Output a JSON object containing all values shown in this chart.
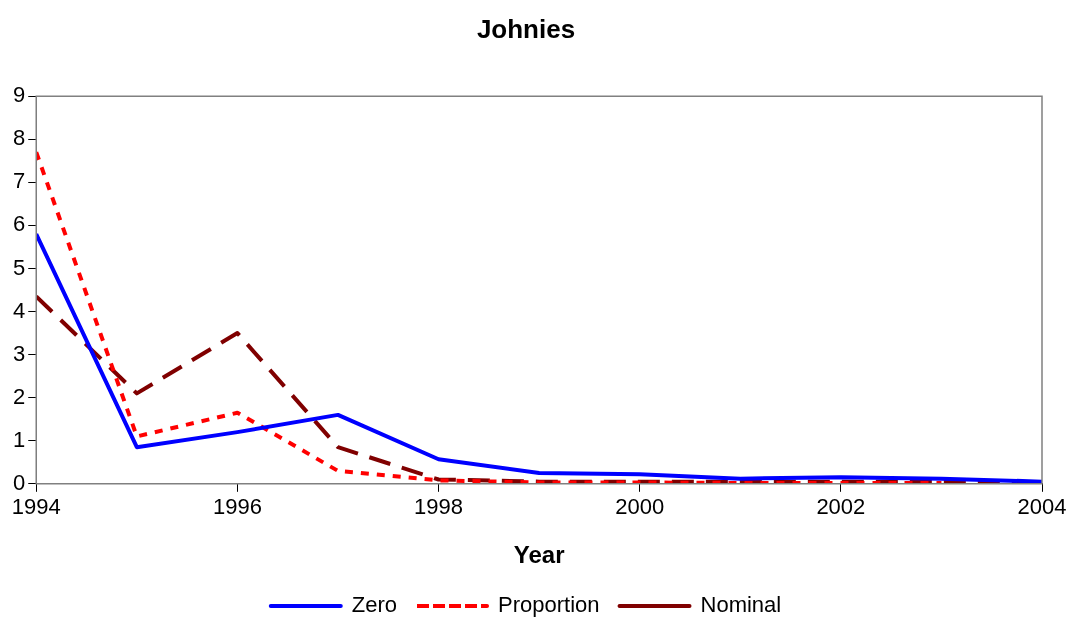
{
  "chart_data": {
    "type": "line",
    "title": "Johnies",
    "xlabel": "Year",
    "x": [
      1994,
      1995,
      1996,
      1997,
      1998,
      1999,
      2000,
      2001,
      2002,
      2003,
      2004
    ],
    "series": [
      {
        "name": "Zero",
        "color": "#0000ff",
        "line_style": "solid",
        "values": [
          5.8,
          0.85,
          1.2,
          1.6,
          0.57,
          0.25,
          0.22,
          0.12,
          0.15,
          0.12,
          0.05
        ]
      },
      {
        "name": "Proportion",
        "color": "#ff0000",
        "line_style": "dotted",
        "values": [
          7.7,
          1.1,
          1.65,
          0.3,
          0.08,
          0.03,
          0.03,
          0.02,
          0.02,
          0.02,
          null
        ]
      },
      {
        "name": "Nominal",
        "color": "#800000",
        "line_style": "dashed",
        "values": [
          4.35,
          2.1,
          3.5,
          0.85,
          0.1,
          0.05,
          0.05,
          0.05,
          0.05,
          0.05,
          0.03
        ]
      }
    ],
    "xlim": [
      1994,
      2004
    ],
    "xticks": [
      1994,
      1996,
      1998,
      2000,
      2002,
      2004
    ],
    "ylim": [
      0,
      9
    ],
    "yticks": [
      0,
      1,
      2,
      3,
      4,
      5,
      6,
      7,
      8,
      9
    ],
    "grid": false,
    "legend": "bottom",
    "marker": "none"
  }
}
